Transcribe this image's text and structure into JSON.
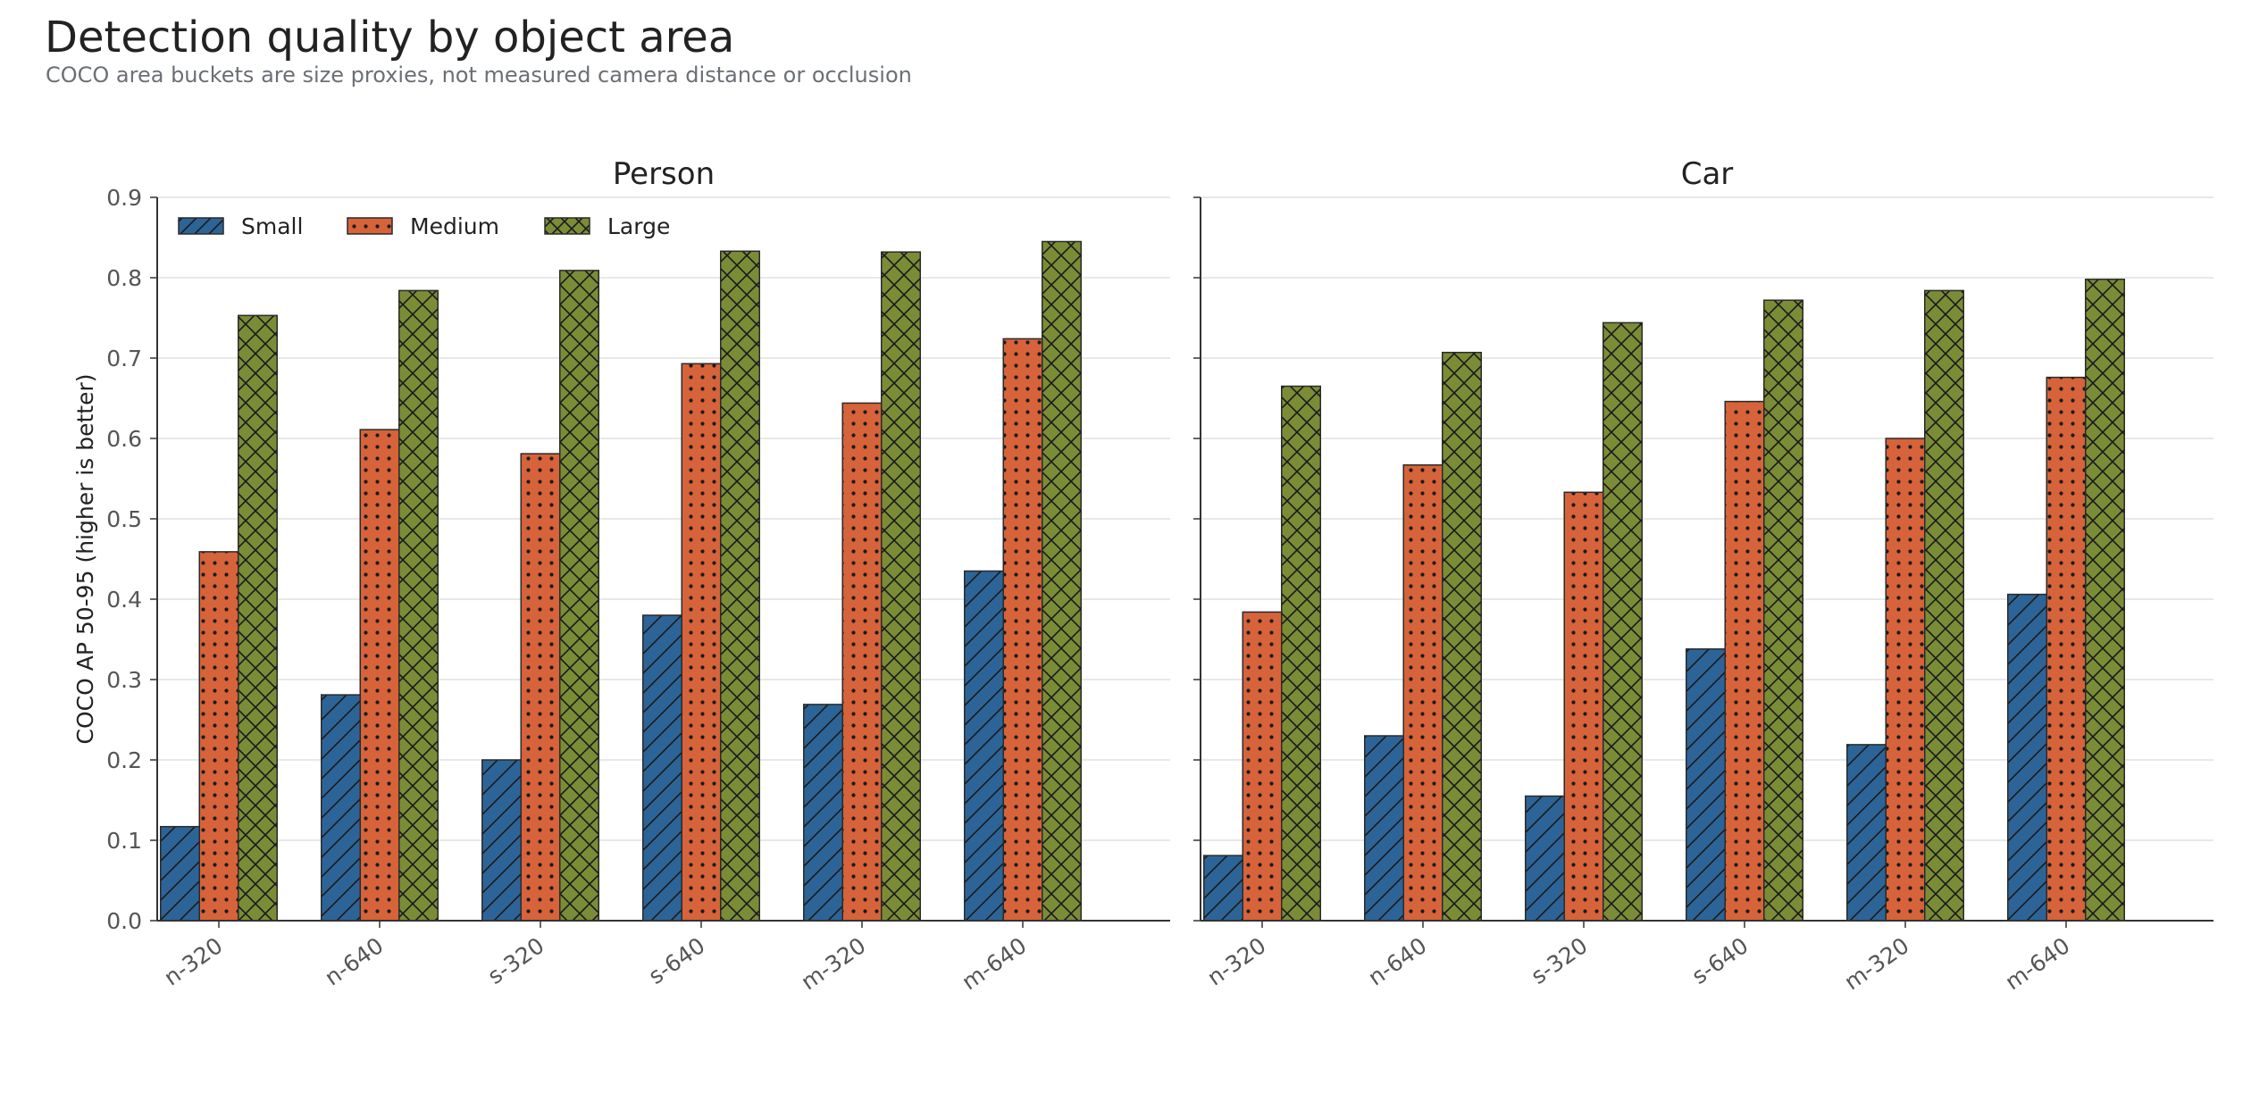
{
  "title": "Detection quality by object area",
  "subtitle": "COCO area buckets are size proxies, not measured camera distance or occlusion",
  "colors": {
    "small": "#2d6497",
    "medium": "#d6633a",
    "large": "#7b8c37",
    "grid": "#dde0e4",
    "axis": "#333333"
  },
  "chart_data": [
    {
      "type": "bar",
      "title": "Person",
      "ylabel": "COCO AP 50-95 (higher is better)",
      "ylim": [
        0,
        0.9
      ],
      "yticks": [
        "0.0",
        "0.1",
        "0.2",
        "0.3",
        "0.4",
        "0.5",
        "0.6",
        "0.7",
        "0.8",
        "0.9"
      ],
      "grid": true,
      "legend": "top-left",
      "categories": [
        "n-320",
        "n-640",
        "s-320",
        "s-640",
        "m-320",
        "m-640"
      ],
      "series": [
        {
          "name": "Small",
          "values": [
            0.117,
            0.281,
            0.2,
            0.38,
            0.269,
            0.435
          ]
        },
        {
          "name": "Medium",
          "values": [
            0.459,
            0.611,
            0.581,
            0.693,
            0.644,
            0.724
          ]
        },
        {
          "name": "Large",
          "values": [
            0.753,
            0.784,
            0.809,
            0.833,
            0.832,
            0.845
          ]
        }
      ]
    },
    {
      "type": "bar",
      "title": "Car",
      "ylabel": "",
      "ylim": [
        0,
        0.9
      ],
      "grid": true,
      "categories": [
        "n-320",
        "n-640",
        "s-320",
        "s-640",
        "m-320",
        "m-640"
      ],
      "series": [
        {
          "name": "Small",
          "values": [
            0.081,
            0.23,
            0.155,
            0.338,
            0.219,
            0.406
          ]
        },
        {
          "name": "Medium",
          "values": [
            0.384,
            0.567,
            0.533,
            0.646,
            0.6,
            0.676
          ]
        },
        {
          "name": "Large",
          "values": [
            0.665,
            0.707,
            0.744,
            0.772,
            0.784,
            0.798
          ]
        }
      ]
    }
  ]
}
